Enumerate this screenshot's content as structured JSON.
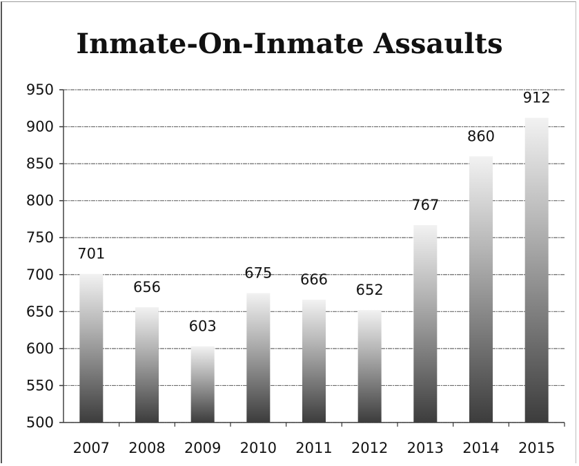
{
  "chart_data": {
    "type": "bar",
    "title": "Inmate-On-Inmate Assaults",
    "categories": [
      "2007",
      "2008",
      "2009",
      "2010",
      "2011",
      "2012",
      "2013",
      "2014",
      "2015"
    ],
    "values": [
      701,
      656,
      603,
      675,
      666,
      652,
      767,
      860,
      912
    ],
    "ylim": [
      500,
      950
    ],
    "yticks": [
      950,
      900,
      850,
      800,
      750,
      700,
      650,
      600,
      550,
      500
    ],
    "grid": true,
    "xlabel": "",
    "ylabel": ""
  }
}
